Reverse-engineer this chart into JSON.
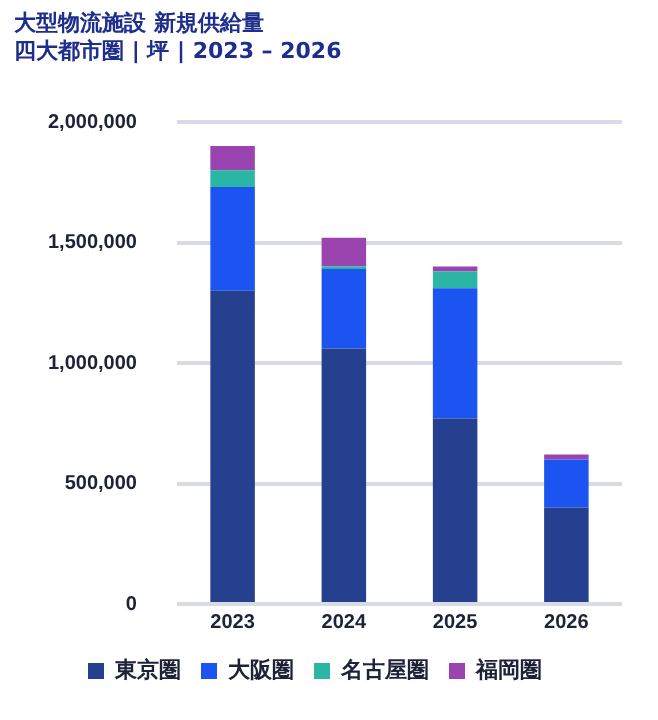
{
  "chart_data": {
    "type": "bar",
    "title": "大型物流施設 新規供給量",
    "subtitle": "四大都市圏 | 坪 | 2023 – 2026",
    "categories": [
      "2023",
      "2024",
      "2025",
      "2026"
    ],
    "series": [
      {
        "name": "東京圏",
        "color": "#24408e",
        "values": [
          1300000,
          1060000,
          770000,
          400000
        ]
      },
      {
        "name": "大阪圏",
        "color": "#1c54f2",
        "values": [
          430000,
          330000,
          540000,
          200000
        ]
      },
      {
        "name": "名古屋圏",
        "color": "#2bb5a5",
        "values": [
          70000,
          10000,
          70000,
          0
        ]
      },
      {
        "name": "福岡圏",
        "color": "#9a44b0",
        "values": [
          100000,
          120000,
          20000,
          20000
        ]
      }
    ],
    "stacked": true,
    "ylim": [
      0,
      2000000
    ],
    "yticks": [
      0,
      {
        "value": 500000,
        "label": "500,000"
      },
      {
        "value": 1000000,
        "label": "1,000,000"
      },
      {
        "value": 1500000,
        "label": "1,500,000"
      },
      {
        "value": 2000000,
        "label": "2,000,000"
      }
    ],
    "grid": "y",
    "legend": "bottom"
  }
}
